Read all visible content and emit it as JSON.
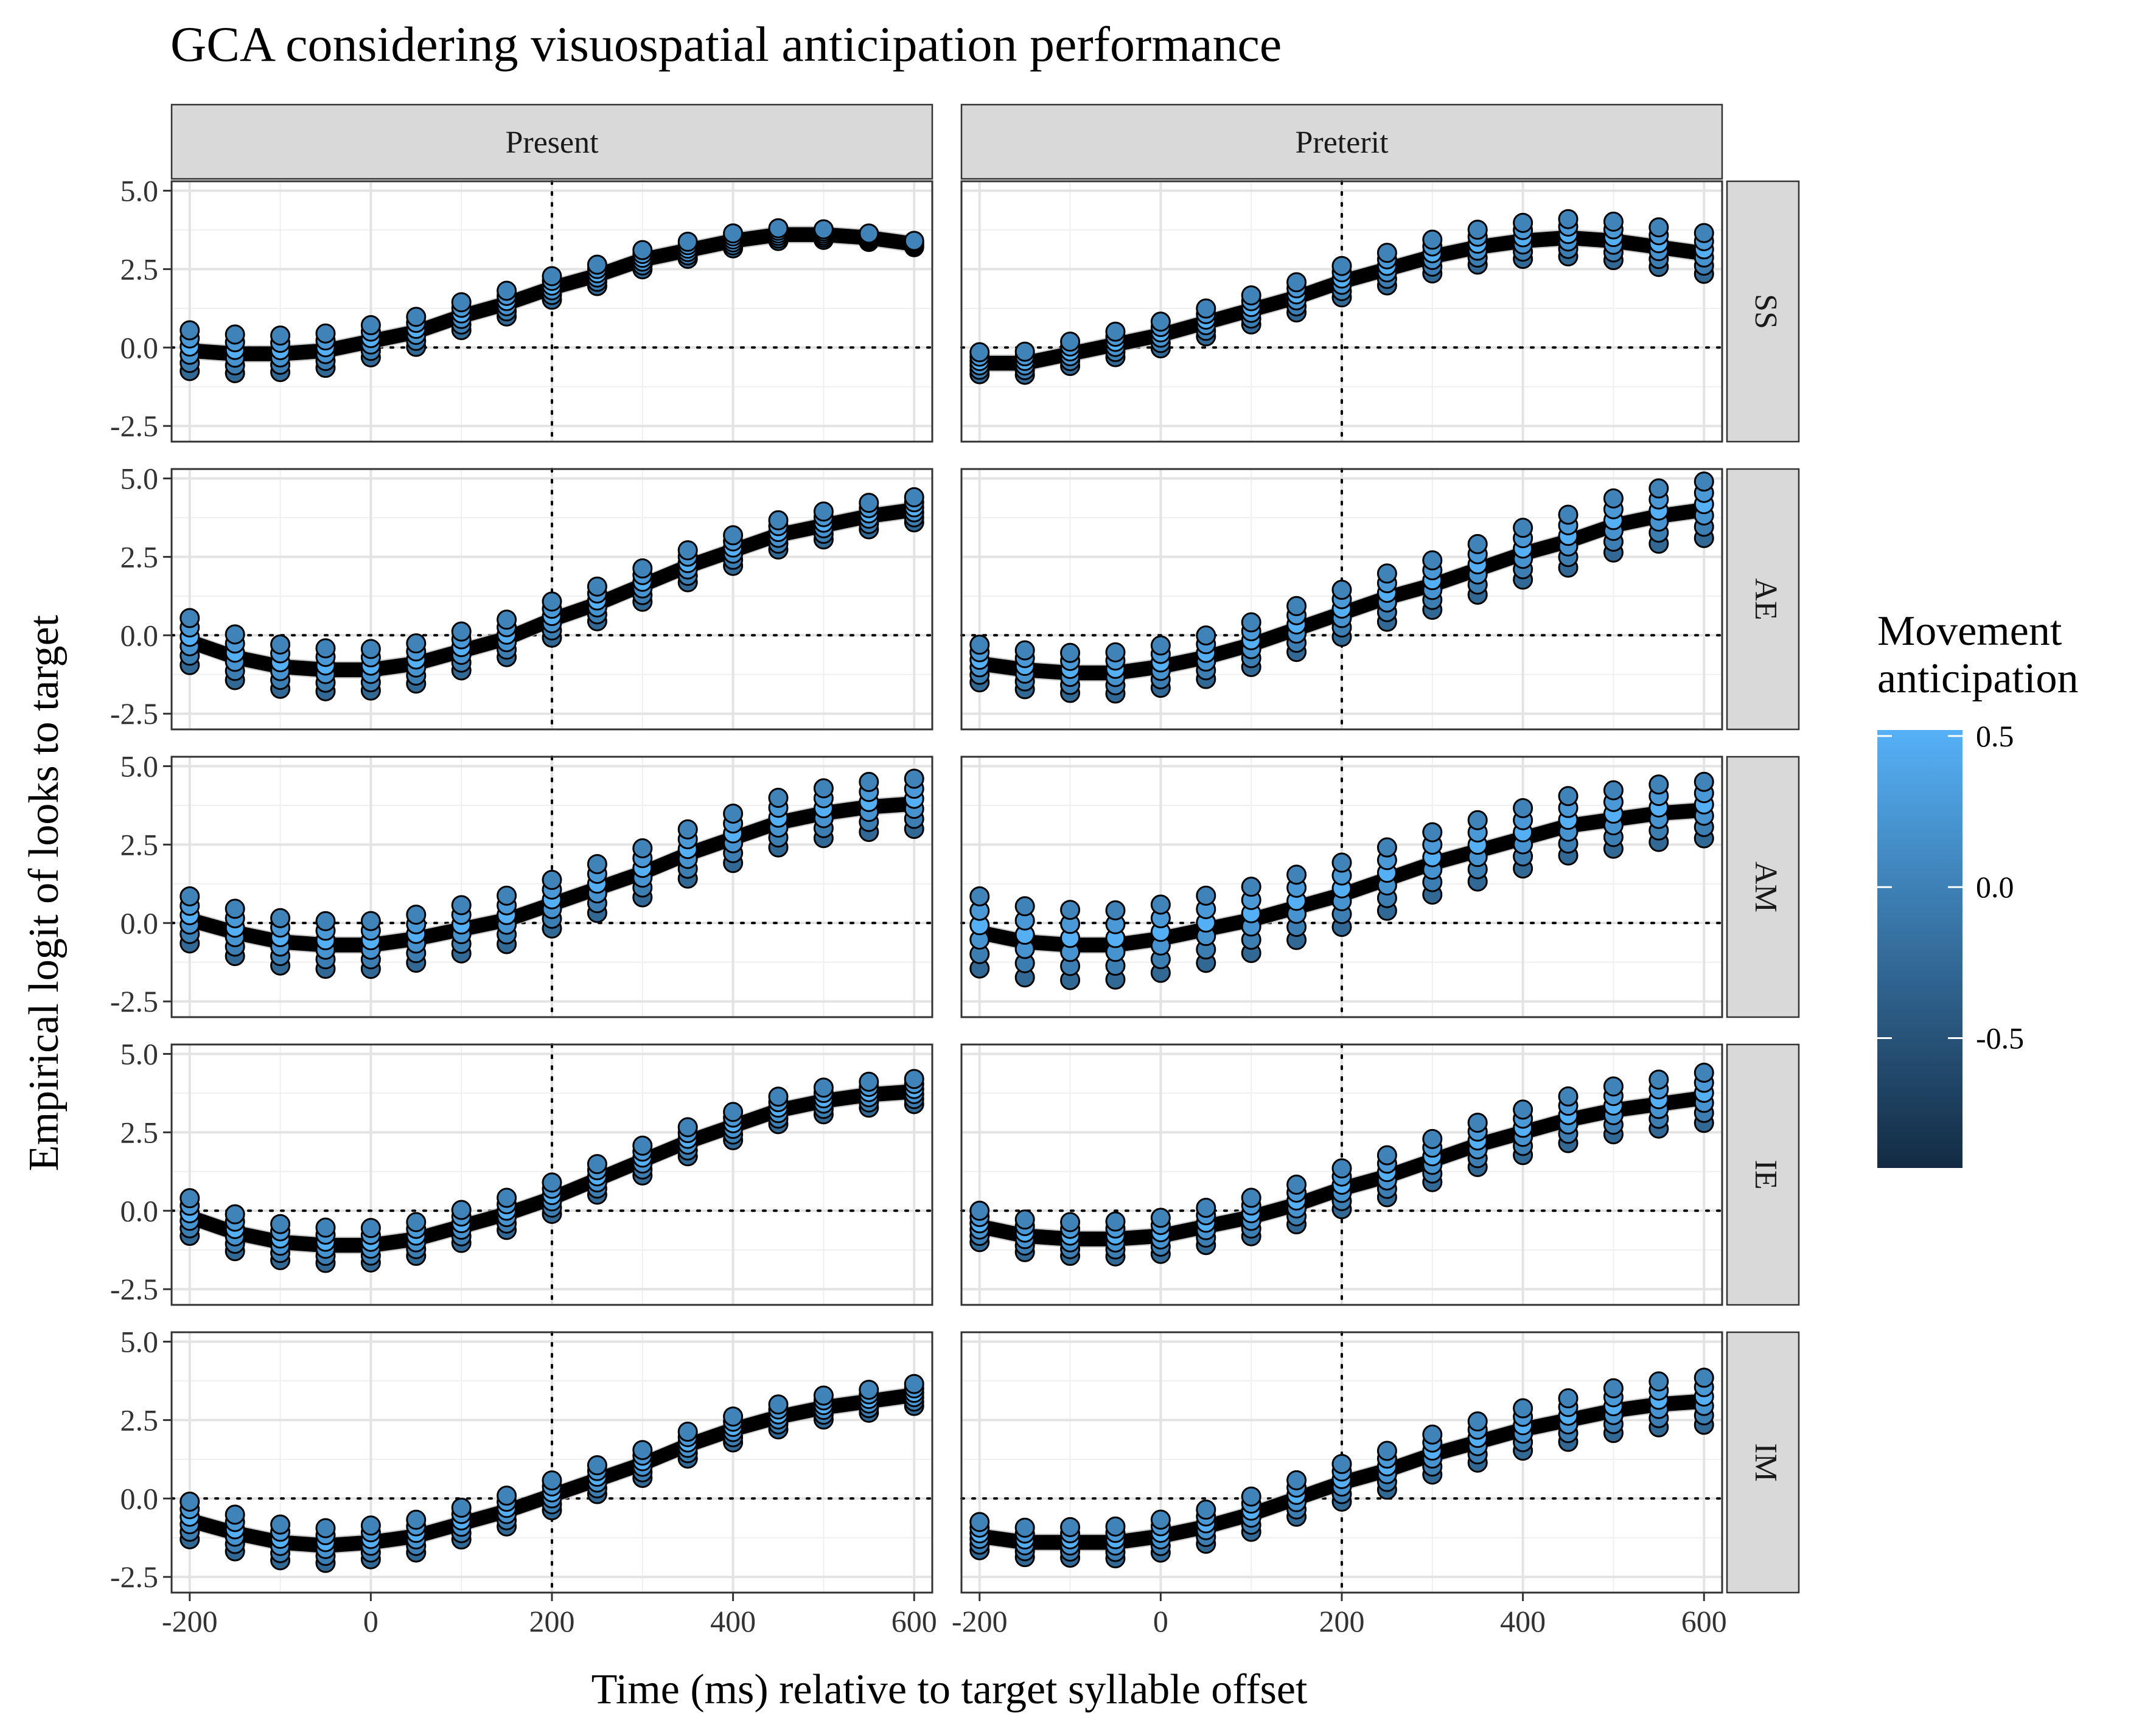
{
  "chart_data": {
    "type": "line",
    "title": "GCA considering visuospatial anticipation performance",
    "xlabel": "Time (ms) relative to target syllable offset",
    "ylabel": "Empirical logit of looks to target",
    "facet_columns": [
      "Present",
      "Preterit"
    ],
    "facet_rows": [
      "SS",
      "AE",
      "AM",
      "IE",
      "IM"
    ],
    "x_ticks": [
      "-200",
      "0",
      "200",
      "400",
      "600"
    ],
    "y_ticks": [
      "-2.5",
      "0.0",
      "2.5",
      "5.0"
    ],
    "xlim": [
      -220,
      620
    ],
    "ylim": [
      -3.0,
      5.3
    ],
    "x_values": [
      -200,
      -150,
      -100,
      -50,
      0,
      50,
      100,
      150,
      200,
      250,
      300,
      350,
      400,
      450,
      500,
      550,
      600
    ],
    "reference_lines": {
      "x": 200,
      "y": 0
    },
    "grid": true,
    "legend": {
      "title": "Movement anticipation",
      "position": "right",
      "ticks": [
        "0.5",
        "0.0",
        "-0.5"
      ],
      "color_low": "#132B43",
      "color_high": "#56B1F7"
    },
    "panels": [
      {
        "row": "SS",
        "col": "Present",
        "spread": [
          1.3,
          0.2
        ],
        "fit": [
          -0.1,
          -0.2,
          -0.2,
          -0.1,
          0.2,
          0.5,
          1.0,
          1.4,
          1.9,
          2.3,
          2.8,
          3.1,
          3.4,
          3.6,
          3.6,
          3.5,
          3.3
        ]
      },
      {
        "row": "SS",
        "col": "Preterit",
        "spread": [
          0.7,
          1.3
        ],
        "fit": [
          -0.5,
          -0.5,
          -0.2,
          0.1,
          0.4,
          0.8,
          1.2,
          1.6,
          2.1,
          2.5,
          2.9,
          3.2,
          3.4,
          3.5,
          3.4,
          3.2,
          3.0
        ]
      },
      {
        "row": "AE",
        "col": "Present",
        "spread": [
          1.5,
          0.8
        ],
        "fit": [
          -0.2,
          -0.7,
          -1.0,
          -1.1,
          -1.1,
          -0.9,
          -0.5,
          -0.1,
          0.5,
          1.0,
          1.6,
          2.2,
          2.7,
          3.2,
          3.5,
          3.8,
          4.0
        ]
      },
      {
        "row": "AE",
        "col": "Preterit",
        "spread": [
          1.2,
          1.8
        ],
        "fit": [
          -0.9,
          -1.1,
          -1.2,
          -1.2,
          -1.0,
          -0.7,
          -0.3,
          0.2,
          0.7,
          1.2,
          1.6,
          2.1,
          2.6,
          3.0,
          3.5,
          3.8,
          4.0
        ]
      },
      {
        "row": "AM",
        "col": "Present",
        "spread": [
          1.5,
          1.6
        ],
        "fit": [
          0.1,
          -0.3,
          -0.6,
          -0.7,
          -0.7,
          -0.5,
          -0.2,
          0.1,
          0.6,
          1.1,
          1.6,
          2.2,
          2.7,
          3.2,
          3.5,
          3.7,
          3.8
        ]
      },
      {
        "row": "AM",
        "col": "Preterit",
        "spread": [
          2.3,
          1.8
        ],
        "fit": [
          -0.3,
          -0.6,
          -0.7,
          -0.7,
          -0.5,
          -0.2,
          0.1,
          0.5,
          0.9,
          1.4,
          1.9,
          2.3,
          2.7,
          3.1,
          3.3,
          3.5,
          3.6
        ]
      },
      {
        "row": "IE",
        "col": "Present",
        "spread": [
          1.2,
          0.8
        ],
        "fit": [
          -0.2,
          -0.7,
          -1.0,
          -1.1,
          -1.1,
          -0.9,
          -0.5,
          -0.1,
          0.4,
          1.0,
          1.6,
          2.2,
          2.7,
          3.2,
          3.5,
          3.7,
          3.8
        ]
      },
      {
        "row": "IE",
        "col": "Preterit",
        "spread": [
          1.0,
          1.6
        ],
        "fit": [
          -0.5,
          -0.8,
          -0.9,
          -0.9,
          -0.8,
          -0.5,
          -0.2,
          0.2,
          0.7,
          1.1,
          1.6,
          2.1,
          2.5,
          2.9,
          3.2,
          3.4,
          3.6
        ]
      },
      {
        "row": "IM",
        "col": "Present",
        "spread": [
          1.2,
          0.7
        ],
        "fit": [
          -0.7,
          -1.1,
          -1.4,
          -1.5,
          -1.4,
          -1.2,
          -0.8,
          -0.4,
          0.1,
          0.6,
          1.1,
          1.7,
          2.2,
          2.6,
          2.9,
          3.1,
          3.3
        ]
      },
      {
        "row": "IM",
        "col": "Preterit",
        "spread": [
          0.9,
          1.5
        ],
        "fit": [
          -1.2,
          -1.4,
          -1.4,
          -1.4,
          -1.2,
          -0.9,
          -0.5,
          0.0,
          0.5,
          0.9,
          1.4,
          1.8,
          2.2,
          2.5,
          2.8,
          3.0,
          3.1
        ]
      }
    ]
  }
}
